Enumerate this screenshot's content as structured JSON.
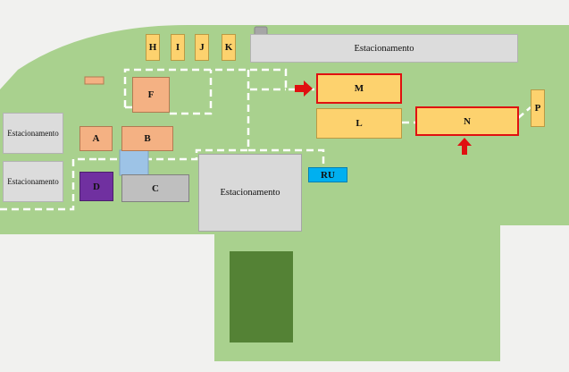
{
  "colors": {
    "grass": "#a9d18e",
    "field": "#548235",
    "path": "#ffffff",
    "highlight": "#e01010",
    "yellow_building": "#fdd26e",
    "orange_building": "#f4b183",
    "purple_building": "#7030a0",
    "blue_building": "#00b0f0",
    "gray_building": "#bfbfbf",
    "parking": "#d9d9d9"
  },
  "buildings": {
    "H": "H",
    "I": "I",
    "J": "J",
    "K": "K",
    "F": "F",
    "A": "A",
    "B": "B",
    "C": "C",
    "D": "D",
    "M": "M",
    "L": "L",
    "N": "N",
    "P": "P",
    "RU": "RU"
  },
  "parking": {
    "top": "Estacionamento",
    "left_upper": "Estacionamento",
    "left_lower": "Estacionamento",
    "center": "Estacionamento"
  },
  "highlighted_buildings": [
    "M",
    "N"
  ],
  "arrow_icons": [
    "right-arrow-icon",
    "up-arrow-icon"
  ]
}
